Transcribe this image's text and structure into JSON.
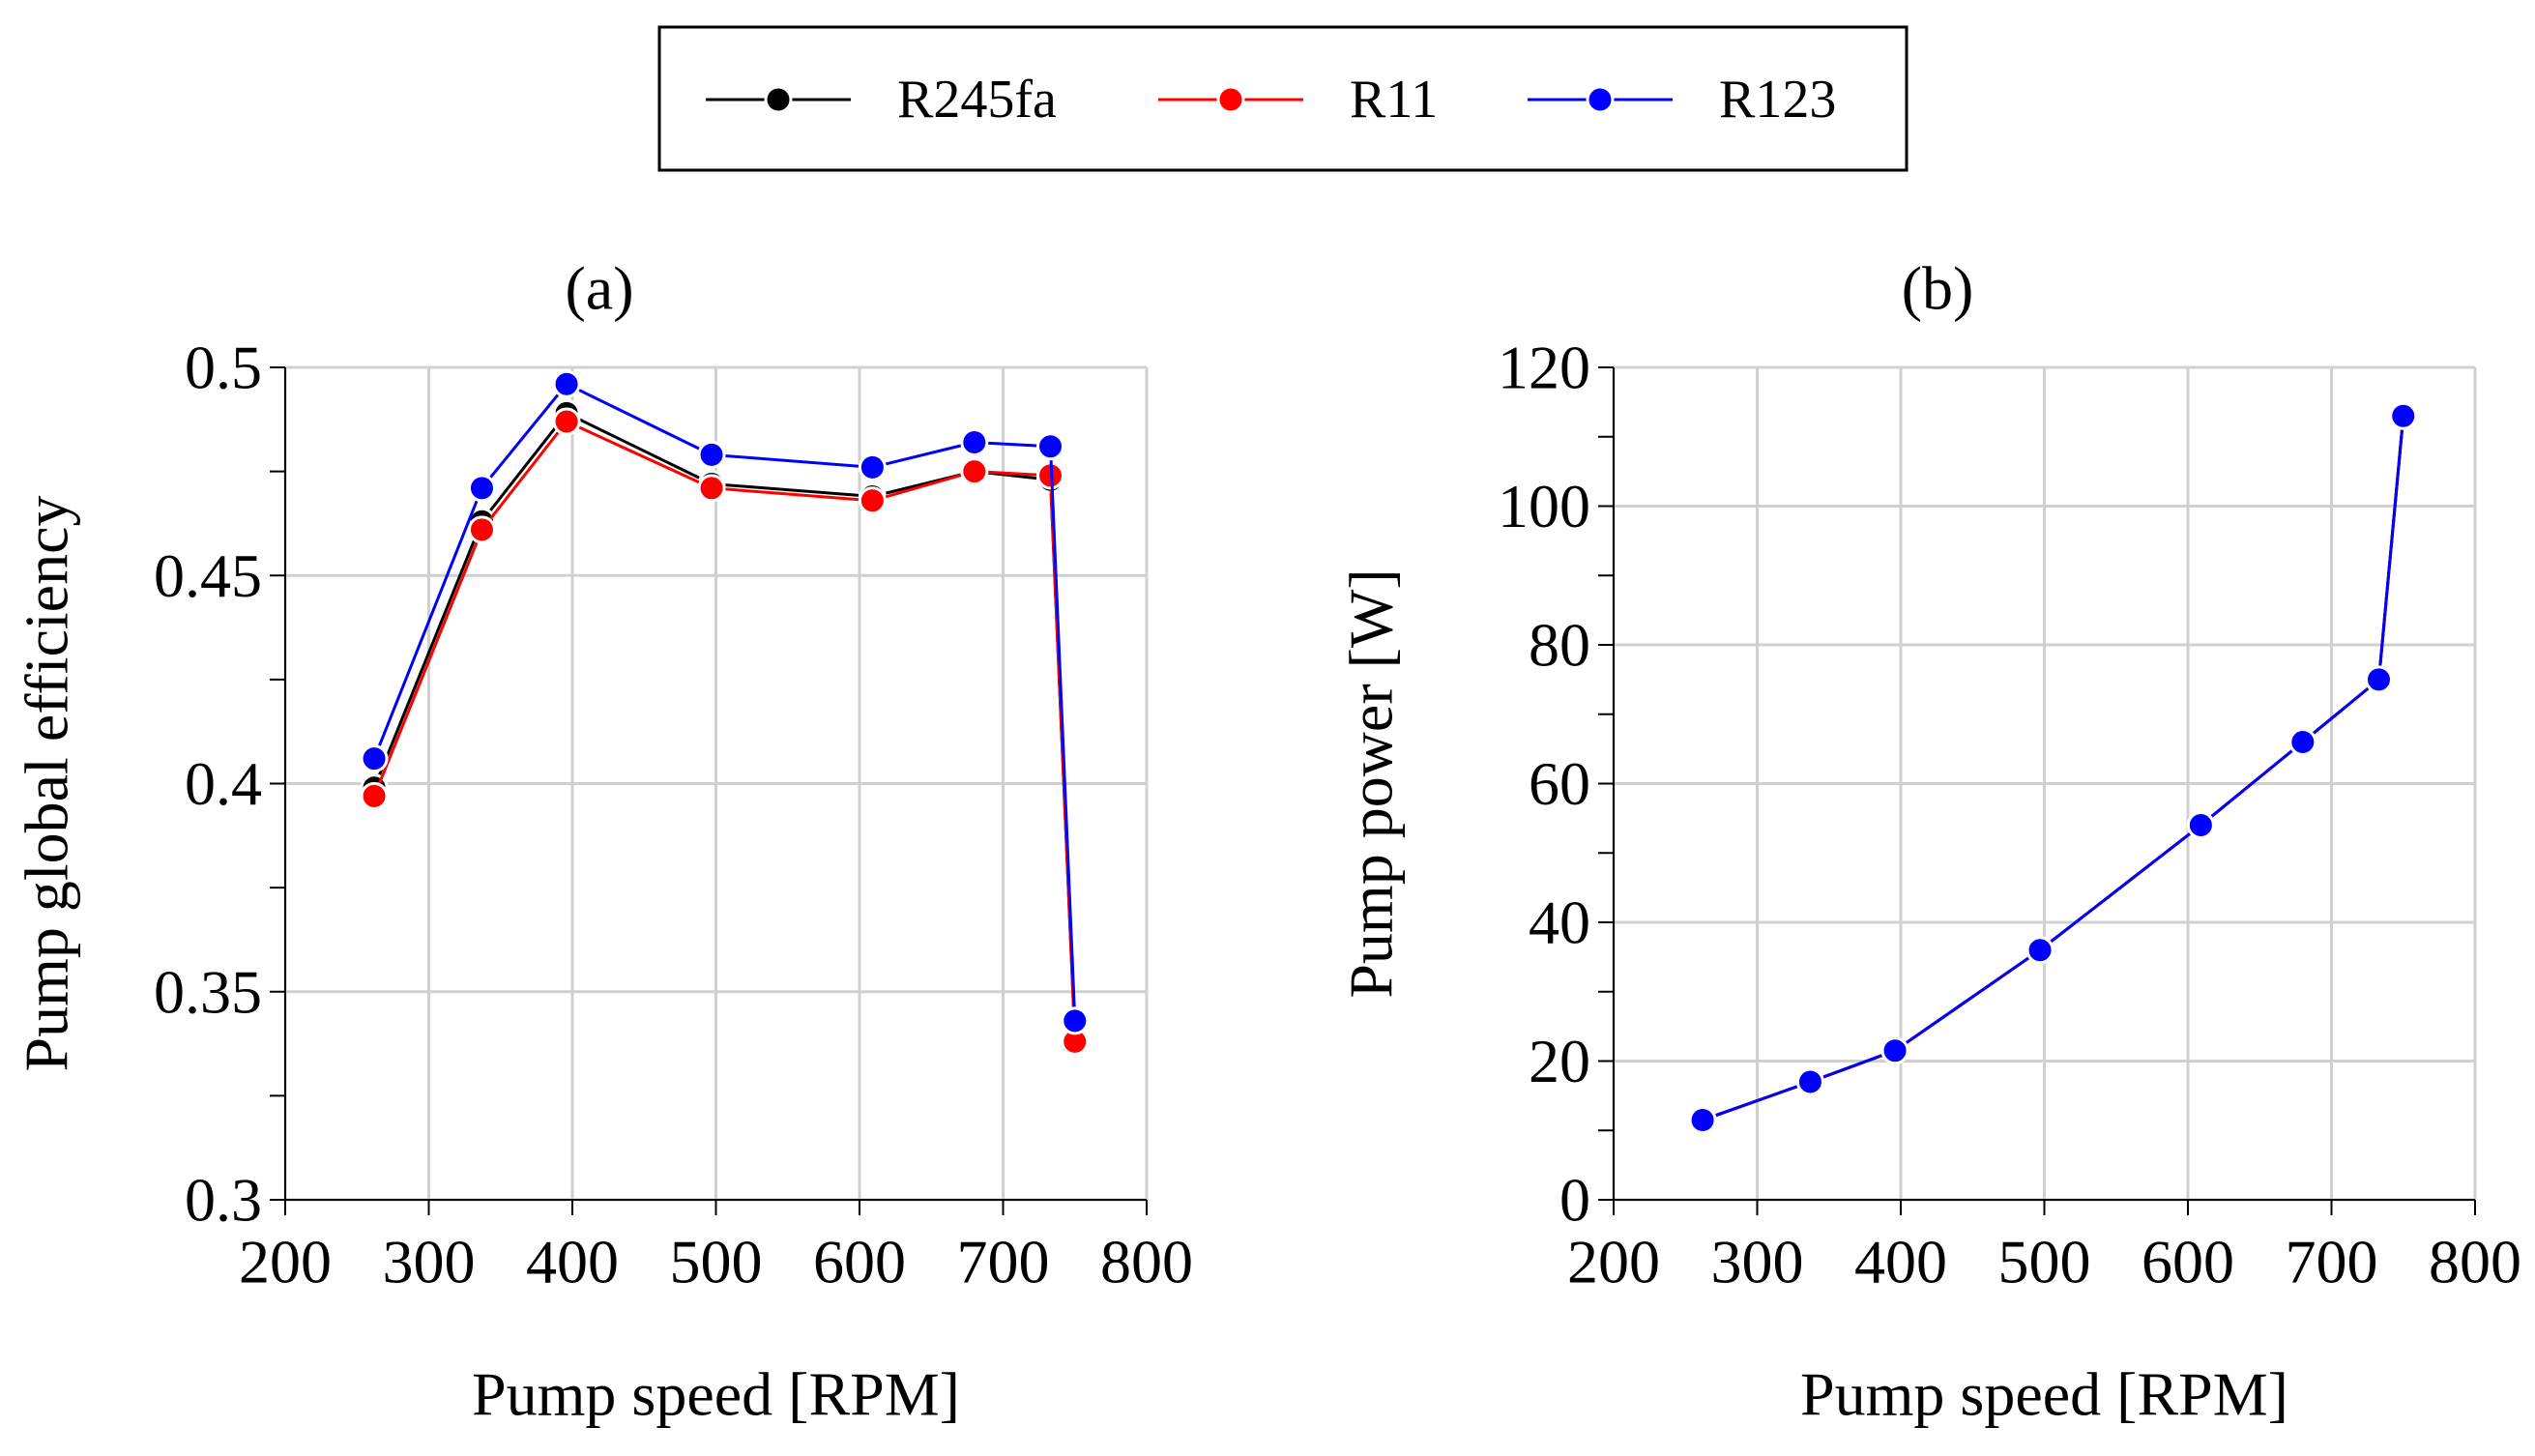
{
  "legend": {
    "items": [
      {
        "name": "R245fa",
        "color": "#000000"
      },
      {
        "name": "R11",
        "color": "#ff0000"
      },
      {
        "name": "R123",
        "color": "#0000ff"
      }
    ]
  },
  "chart_data": [
    {
      "type": "line",
      "panel": "(a)",
      "title": "(a)",
      "xlabel": "Pump speed [RPM]",
      "ylabel": "Pump global efficiency",
      "xlim": [
        200,
        800
      ],
      "ylim": [
        0.3,
        0.5
      ],
      "xticks": [
        200,
        300,
        400,
        500,
        600,
        700,
        800
      ],
      "xtick_labels": [
        "200",
        "300",
        "400",
        "500",
        "600",
        "700",
        "800"
      ],
      "yticks": [
        0.3,
        0.35,
        0.4,
        0.45,
        0.5
      ],
      "ytick_labels": [
        "0.3",
        "0.35",
        "0.4",
        "0.45",
        "0.5"
      ],
      "grid": true,
      "series": [
        {
          "name": "R245fa",
          "color": "#000000",
          "x": [
            262,
            337,
            396,
            497,
            609,
            680,
            733,
            750
          ],
          "y": [
            0.399,
            0.463,
            0.489,
            0.472,
            0.469,
            0.475,
            0.473,
            0.339
          ]
        },
        {
          "name": "R11",
          "color": "#ff0000",
          "x": [
            262,
            337,
            396,
            497,
            609,
            680,
            733,
            750
          ],
          "y": [
            0.397,
            0.461,
            0.487,
            0.471,
            0.468,
            0.475,
            0.474,
            0.338
          ]
        },
        {
          "name": "R123",
          "color": "#0000ff",
          "x": [
            262,
            337,
            396,
            497,
            609,
            680,
            733,
            750
          ],
          "y": [
            0.406,
            0.471,
            0.496,
            0.479,
            0.476,
            0.482,
            0.481,
            0.343
          ]
        }
      ]
    },
    {
      "type": "line",
      "panel": "(b)",
      "title": "(b)",
      "xlabel": "Pump speed [RPM]",
      "ylabel": "Pump power [W]",
      "xlim": [
        200,
        800
      ],
      "ylim": [
        0,
        120
      ],
      "xticks": [
        200,
        300,
        400,
        500,
        600,
        700,
        800
      ],
      "xtick_labels": [
        "200",
        "300",
        "400",
        "500",
        "600",
        "700",
        "800"
      ],
      "yticks": [
        0,
        20,
        40,
        60,
        80,
        100,
        120
      ],
      "ytick_labels": [
        "0",
        "20",
        "40",
        "60",
        "80",
        "100",
        "120"
      ],
      "grid": true,
      "series": [
        {
          "name": "R245fa",
          "color": "#000000",
          "x": [
            262,
            337,
            396,
            497,
            609,
            680,
            733,
            750
          ],
          "y": [
            11.5,
            17,
            21.5,
            36,
            54,
            66,
            75,
            113
          ]
        },
        {
          "name": "R11",
          "color": "#ff0000",
          "x": [
            262,
            337,
            396,
            497,
            609,
            680,
            733,
            750
          ],
          "y": [
            11.5,
            17,
            21.5,
            36,
            54,
            66,
            75,
            113
          ]
        },
        {
          "name": "R123",
          "color": "#0000ff",
          "x": [
            262,
            337,
            396,
            497,
            609,
            680,
            733,
            750
          ],
          "y": [
            11.5,
            17,
            21.5,
            36,
            54,
            66,
            75,
            113
          ]
        }
      ]
    }
  ]
}
